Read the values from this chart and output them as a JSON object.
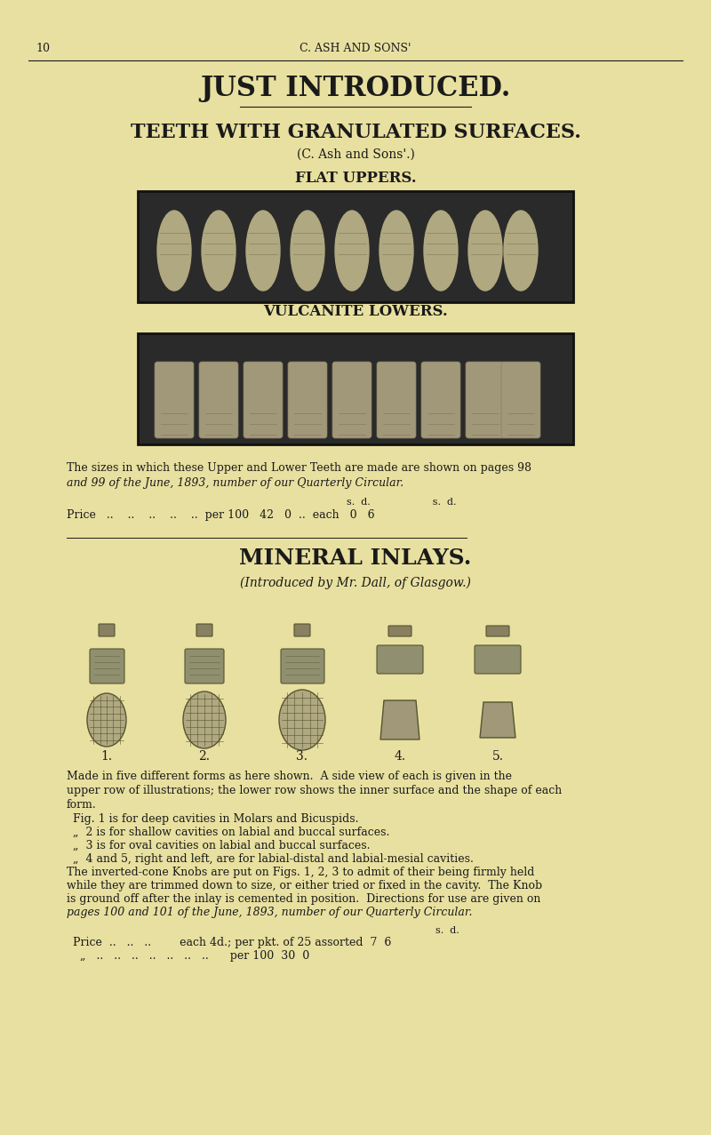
{
  "bg_color": "#e8e0a0",
  "text_color": "#1a1a1a",
  "page_num": "10",
  "header_center": "C. ASH AND SONS'",
  "main_title": "JUST INTRODUCED.",
  "section1_title": "TEETH WITH GRANULATED SURFACES.",
  "section1_sub": "(C. Ash and Sons'.)",
  "flat_uppers_label": "FLAT UPPERS.",
  "vulcanite_label": "VULCANITE LOWERS.",
  "sizes_text1": "The sizes in which these Upper and Lower Teeth are made are shown on pages 98",
  "sizes_text2": "and 99 of the June, 1893, number of our Quarterly Circular.",
  "price_line1_label": "s.  d.                    s.  d.",
  "price_line1": "Price  ..   ..   ..   ..   ..  per 100  42  0  ..  each  0  6",
  "section2_title": "MINERAL INLAYS.",
  "section2_sub": "(Introduced by Mr. Dall, of Glasgow.)",
  "fig_labels": [
    "1.",
    "2.",
    "3.",
    "4.",
    "5."
  ],
  "body_text": [
    "Made in five different forms as here shown.  A side view of each is given in the",
    "upper row of illustrations; the lower row shows the inner surface and the shape of each",
    "form."
  ],
  "fig_text": [
    "Fig. 1 is for deep cavities in Molars and Bicuspids.",
    "  „  2 is for shallow cavities on labial and buccal surfaces.",
    "  „  3 is for oval cavities on labial and buccal surfaces.",
    "  „  4 and 5, right and left, are for labial-distal and labial-mesial cavities."
  ],
  "knob_text1": "The inverted-cone Knobs are put on Figs. 1, 2, 3 to admit of their being firmly held",
  "knob_text2": "while they are trimmed down to size, or either tried or fixed in the cavity.  The Knob",
  "knob_text3": "is ground off after the inlay is cemented in position.  Directions for use are given on",
  "knob_text4_italic": "pages 100 and 101 of the June, 1893, number of our Quarterly Circular.",
  "price2_sd": "s.  d.",
  "price2_line1": "Price  ..   ..   ..        each 4d.; per pkt. of 25 assorted  7  6",
  "price2_line2": "  „   ..   ..   ..   ..   ..   ..   ..      per 100  30  0"
}
